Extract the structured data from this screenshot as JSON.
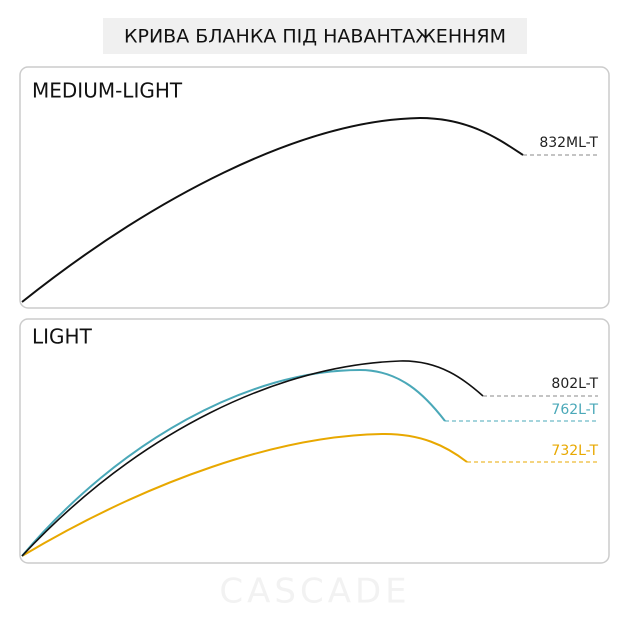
{
  "header": {
    "title": "КРИВА БЛАНКА ПІД НАВАНТАЖЕННЯМ"
  },
  "panels": [
    {
      "title": "MEDIUM-LIGHT",
      "curves": [
        {
          "label": "832ML-T"
        }
      ]
    },
    {
      "title": "LIGHT",
      "curves": [
        {
          "label": "802L-T"
        },
        {
          "label": "762L-T"
        },
        {
          "label": "732L-T"
        }
      ]
    }
  ],
  "watermark": "CASCADE"
}
